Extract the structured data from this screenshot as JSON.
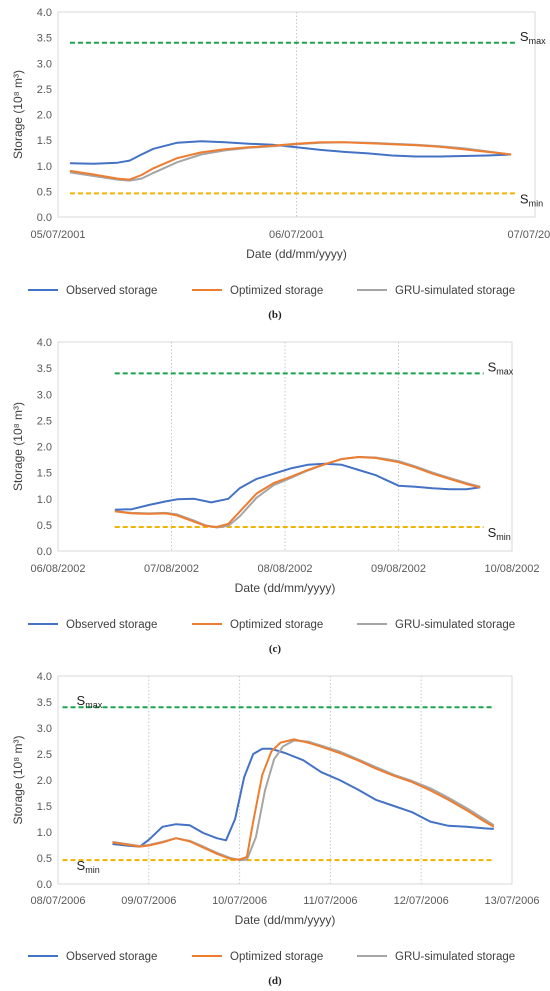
{
  "chart_data": [
    {
      "type": "line",
      "panel": "(b)",
      "xlabel": "Date (dd/mm/yyyy)",
      "ylabel": "Storage (10⁸ m³)",
      "ylim": [
        0,
        4
      ],
      "yticks": [
        "0.0",
        "0.5",
        "1.0",
        "1.5",
        "2.0",
        "2.5",
        "3.0",
        "3.5",
        "4.0"
      ],
      "x_ticks": [
        "05/07/2001",
        "06/07/2001",
        "07/07/2001"
      ],
      "x_range_days": [
        0,
        2
      ],
      "grid": "vertical",
      "legend": "bottom",
      "reference_lines": [
        {
          "name": "Smax",
          "label_main": "S",
          "label_sub": "max",
          "value": 3.4,
          "color": "#1aa34a",
          "x_range": [
            0.05,
            1.92
          ],
          "label_side": "right"
        },
        {
          "name": "Smin",
          "label_main": "S",
          "label_sub": "min",
          "value": 0.46,
          "color": "#f0b400",
          "x_range": [
            0.05,
            1.92
          ],
          "label_side": "right"
        }
      ],
      "series": [
        {
          "name": "Observed storage",
          "color": "#4472c4",
          "x": [
            0.05,
            0.15,
            0.25,
            0.3,
            0.35,
            0.4,
            0.5,
            0.6,
            0.7,
            0.8,
            0.9,
            1.0,
            1.1,
            1.2,
            1.3,
            1.4,
            1.5,
            1.6,
            1.7,
            1.8,
            1.9
          ],
          "y": [
            1.05,
            1.04,
            1.06,
            1.1,
            1.22,
            1.33,
            1.45,
            1.48,
            1.46,
            1.43,
            1.41,
            1.36,
            1.31,
            1.27,
            1.24,
            1.2,
            1.18,
            1.18,
            1.19,
            1.2,
            1.22
          ]
        },
        {
          "name": "Optimized storage",
          "color": "#ed7d31",
          "x": [
            0.05,
            0.15,
            0.25,
            0.3,
            0.35,
            0.4,
            0.5,
            0.6,
            0.7,
            0.8,
            0.9,
            1.0,
            1.1,
            1.2,
            1.3,
            1.4,
            1.5,
            1.6,
            1.7,
            1.8,
            1.9
          ],
          "y": [
            0.9,
            0.83,
            0.75,
            0.73,
            0.82,
            0.95,
            1.15,
            1.26,
            1.32,
            1.36,
            1.39,
            1.43,
            1.46,
            1.46,
            1.44,
            1.42,
            1.4,
            1.37,
            1.32,
            1.27,
            1.22
          ]
        },
        {
          "name": "GRU-simulated storage",
          "color": "#a5a5a5",
          "x": [
            0.05,
            0.15,
            0.25,
            0.3,
            0.35,
            0.4,
            0.5,
            0.6,
            0.7,
            0.8,
            0.9,
            1.0,
            1.1,
            1.2,
            1.3,
            1.4,
            1.5,
            1.6,
            1.7,
            1.8,
            1.9
          ],
          "y": [
            0.87,
            0.8,
            0.73,
            0.71,
            0.75,
            0.86,
            1.07,
            1.22,
            1.3,
            1.35,
            1.38,
            1.42,
            1.45,
            1.46,
            1.45,
            1.43,
            1.41,
            1.38,
            1.34,
            1.28,
            1.22
          ]
        }
      ],
      "caption": "(b)"
    },
    {
      "type": "line",
      "panel": "(c)",
      "xlabel": "Date (dd/mm/yyyy)",
      "ylabel": "Storage (10⁸ m³)",
      "ylim": [
        0,
        4
      ],
      "yticks": [
        "0.0",
        "0.5",
        "1.0",
        "1.5",
        "2.0",
        "2.5",
        "3.0",
        "3.5",
        "4.0"
      ],
      "x_ticks": [
        "06/08/2002",
        "07/08/2002",
        "08/08/2002",
        "09/08/2002",
        "10/08/2002"
      ],
      "x_range_days": [
        0,
        4
      ],
      "grid": "vertical",
      "legend": "bottom",
      "reference_lines": [
        {
          "name": "Smax",
          "label_main": "S",
          "label_sub": "max",
          "value": 3.4,
          "color": "#1aa34a",
          "x_range": [
            0.5,
            3.75
          ],
          "label_side": "right"
        },
        {
          "name": "Smin",
          "label_main": "S",
          "label_sub": "min",
          "value": 0.46,
          "color": "#f0b400",
          "x_range": [
            0.5,
            3.75
          ],
          "label_side": "right"
        }
      ],
      "series": [
        {
          "name": "Observed storage",
          "color": "#4472c4",
          "x": [
            0.5,
            0.65,
            0.8,
            0.95,
            1.05,
            1.2,
            1.35,
            1.5,
            1.6,
            1.75,
            1.9,
            2.05,
            2.2,
            2.35,
            2.5,
            2.65,
            2.8,
            3.0,
            3.15,
            3.3,
            3.45,
            3.6,
            3.72
          ],
          "y": [
            0.79,
            0.8,
            0.88,
            0.95,
            0.99,
            1.0,
            0.93,
            1.0,
            1.2,
            1.38,
            1.48,
            1.58,
            1.65,
            1.67,
            1.65,
            1.55,
            1.45,
            1.25,
            1.23,
            1.2,
            1.18,
            1.18,
            1.22
          ]
        },
        {
          "name": "Optimized storage",
          "color": "#ed7d31",
          "x": [
            0.5,
            0.65,
            0.8,
            0.95,
            1.05,
            1.2,
            1.3,
            1.4,
            1.5,
            1.6,
            1.75,
            1.9,
            2.05,
            2.2,
            2.35,
            2.5,
            2.65,
            2.8,
            3.0,
            3.15,
            3.3,
            3.45,
            3.6,
            3.72
          ],
          "y": [
            0.76,
            0.72,
            0.71,
            0.72,
            0.68,
            0.56,
            0.48,
            0.46,
            0.52,
            0.75,
            1.1,
            1.3,
            1.42,
            1.55,
            1.66,
            1.76,
            1.8,
            1.78,
            1.7,
            1.6,
            1.48,
            1.38,
            1.28,
            1.22
          ]
        },
        {
          "name": "GRU-simulated storage",
          "color": "#a5a5a5",
          "x": [
            0.5,
            0.65,
            0.8,
            0.95,
            1.05,
            1.2,
            1.3,
            1.4,
            1.5,
            1.6,
            1.75,
            1.9,
            2.05,
            2.2,
            2.35,
            2.5,
            2.65,
            2.8,
            3.0,
            3.15,
            3.3,
            3.45,
            3.6,
            3.72
          ],
          "y": [
            0.76,
            0.73,
            0.72,
            0.73,
            0.7,
            0.58,
            0.49,
            0.45,
            0.48,
            0.66,
            1.02,
            1.26,
            1.4,
            1.54,
            1.66,
            1.76,
            1.8,
            1.79,
            1.72,
            1.62,
            1.5,
            1.4,
            1.3,
            1.23
          ]
        }
      ],
      "caption": "(c)"
    },
    {
      "type": "line",
      "panel": "(d)",
      "xlabel": "Date (dd/mm/yyyy)",
      "ylabel": "Storage (10⁸ m³)",
      "ylim": [
        0,
        4
      ],
      "yticks": [
        "0.0",
        "0.5",
        "1.0",
        "1.5",
        "2.0",
        "2.5",
        "3.0",
        "3.5",
        "4.0"
      ],
      "x_ticks": [
        "08/07/2006",
        "09/07/2006",
        "10/07/2006",
        "11/07/2006",
        "12/07/2006",
        "13/07/2006"
      ],
      "x_range_days": [
        0,
        5
      ],
      "grid": "vertical",
      "legend": "bottom",
      "reference_lines": [
        {
          "name": "Smax",
          "label_main": "S",
          "label_sub": "max",
          "value": 3.4,
          "color": "#1aa34a",
          "x_range": [
            0.05,
            4.8
          ],
          "label_side": "left"
        },
        {
          "name": "Smin",
          "label_main": "S",
          "label_sub": "min",
          "value": 0.46,
          "color": "#f0b400",
          "x_range": [
            0.05,
            4.8
          ],
          "label_side": "left"
        }
      ],
      "series": [
        {
          "name": "Observed storage",
          "color": "#4472c4",
          "x": [
            0.6,
            0.75,
            0.9,
            1.0,
            1.15,
            1.3,
            1.45,
            1.6,
            1.75,
            1.85,
            1.95,
            2.05,
            2.15,
            2.25,
            2.35,
            2.5,
            2.7,
            2.9,
            3.1,
            3.3,
            3.5,
            3.7,
            3.9,
            4.1,
            4.3,
            4.5,
            4.7,
            4.8
          ],
          "y": [
            0.77,
            0.74,
            0.72,
            0.85,
            1.1,
            1.15,
            1.13,
            0.98,
            0.88,
            0.84,
            1.25,
            2.05,
            2.5,
            2.6,
            2.6,
            2.52,
            2.38,
            2.15,
            2.0,
            1.82,
            1.62,
            1.5,
            1.38,
            1.2,
            1.12,
            1.1,
            1.07,
            1.06
          ]
        },
        {
          "name": "Optimized storage",
          "color": "#ed7d31",
          "x": [
            0.6,
            0.75,
            0.9,
            1.0,
            1.15,
            1.3,
            1.45,
            1.6,
            1.75,
            1.9,
            2.0,
            2.08,
            2.15,
            2.25,
            2.35,
            2.45,
            2.6,
            2.75,
            2.9,
            3.1,
            3.3,
            3.5,
            3.7,
            3.9,
            4.1,
            4.3,
            4.5,
            4.7,
            4.8
          ],
          "y": [
            0.8,
            0.76,
            0.72,
            0.74,
            0.8,
            0.88,
            0.82,
            0.7,
            0.58,
            0.48,
            0.47,
            0.52,
            1.2,
            2.1,
            2.55,
            2.72,
            2.78,
            2.72,
            2.64,
            2.52,
            2.38,
            2.22,
            2.08,
            1.96,
            1.8,
            1.62,
            1.42,
            1.2,
            1.1
          ]
        },
        {
          "name": "GRU-simulated storage",
          "color": "#a5a5a5",
          "x": [
            0.6,
            0.75,
            0.9,
            1.0,
            1.15,
            1.3,
            1.45,
            1.6,
            1.75,
            1.9,
            2.0,
            2.08,
            2.18,
            2.28,
            2.38,
            2.48,
            2.6,
            2.75,
            2.9,
            3.1,
            3.3,
            3.5,
            3.7,
            3.9,
            4.1,
            4.3,
            4.5,
            4.7,
            4.8
          ],
          "y": [
            0.81,
            0.77,
            0.73,
            0.75,
            0.81,
            0.88,
            0.83,
            0.72,
            0.6,
            0.5,
            0.46,
            0.47,
            0.9,
            1.8,
            2.4,
            2.65,
            2.76,
            2.74,
            2.66,
            2.55,
            2.4,
            2.25,
            2.1,
            1.98,
            1.84,
            1.66,
            1.46,
            1.24,
            1.13
          ]
        }
      ],
      "caption": "(d)"
    }
  ]
}
